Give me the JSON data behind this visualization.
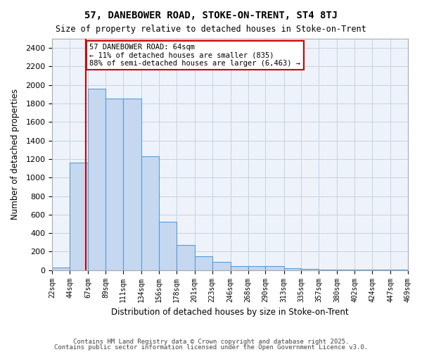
{
  "title1": "57, DANEBOWER ROAD, STOKE-ON-TRENT, ST4 8TJ",
  "title2": "Size of property relative to detached houses in Stoke-on-Trent",
  "xlabel": "Distribution of detached houses by size in Stoke-on-Trent",
  "ylabel": "Number of detached properties",
  "bins": [
    22,
    44,
    67,
    89,
    111,
    134,
    156,
    178,
    201,
    223,
    246,
    268,
    290,
    313,
    335,
    357,
    380,
    402,
    424,
    447,
    469
  ],
  "values": [
    25,
    1160,
    1960,
    1850,
    1850,
    1230,
    520,
    270,
    150,
    90,
    45,
    40,
    40,
    20,
    10,
    5,
    5,
    5,
    5,
    5
  ],
  "bar_color": "#c5d8f0",
  "bar_edge_color": "#5b9bd5",
  "vline_x": 64,
  "vline_color": "#cc0000",
  "annotation_text": "57 DANEBOWER ROAD: 64sqm\n← 11% of detached houses are smaller (835)\n88% of semi-detached houses are larger (6,463) →",
  "annotation_box_color": "#ffffff",
  "annotation_box_edge": "#cc0000",
  "footer1": "Contains HM Land Registry data © Crown copyright and database right 2025.",
  "footer2": "Contains public sector information licensed under the Open Government Licence v3.0.",
  "bg_color": "#eef3fb",
  "ylim": [
    0,
    2500
  ],
  "yticks": [
    0,
    200,
    400,
    600,
    800,
    1000,
    1200,
    1400,
    1600,
    1800,
    2000,
    2200,
    2400
  ]
}
